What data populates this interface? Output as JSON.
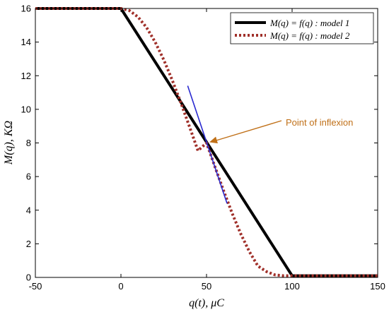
{
  "chart_data": {
    "type": "line",
    "title": "",
    "xlabel": "q(t),  μC",
    "ylabel": "M(q),  KΩ",
    "xlim": [
      -50,
      150
    ],
    "ylim": [
      0,
      16
    ],
    "xticks": [
      "-50",
      "0",
      "50",
      "100",
      "150"
    ],
    "yticks": [
      "0",
      "2",
      "4",
      "6",
      "8",
      "10",
      "12",
      "14",
      "16"
    ],
    "grid": false,
    "legend_position": "top-right",
    "series": [
      {
        "name": "M(q) = f(q) :  model 1",
        "color": "#000000",
        "style": "solid",
        "x": [
          -50,
          0,
          100,
          150
        ],
        "y": [
          16,
          16,
          0.1,
          0.1
        ]
      },
      {
        "name": "M(q) = f(q) :  model 2",
        "color": "#a0302a",
        "style": "dotted",
        "x": [
          -50,
          0,
          5,
          10,
          15,
          20,
          25,
          30,
          35,
          40,
          45,
          50,
          55,
          60,
          65,
          70,
          75,
          80,
          85,
          90,
          95,
          100,
          150
        ],
        "y": [
          16,
          16,
          15.87,
          15.49,
          14.86,
          14.0,
          12.95,
          11.73,
          10.39,
          8.98,
          7.54,
          8.0,
          6.56,
          5.15,
          3.81,
          2.59,
          1.54,
          0.68,
          0.35,
          0.15,
          0.1,
          0.1,
          0.1
        ]
      }
    ],
    "tangent": {
      "color": "#2a2ad0",
      "x": [
        39,
        62
      ],
      "y": [
        11.4,
        4.4
      ]
    },
    "annotation": {
      "text": "Point of inflexion",
      "color": "#c07018",
      "point": [
        50,
        8
      ]
    }
  }
}
